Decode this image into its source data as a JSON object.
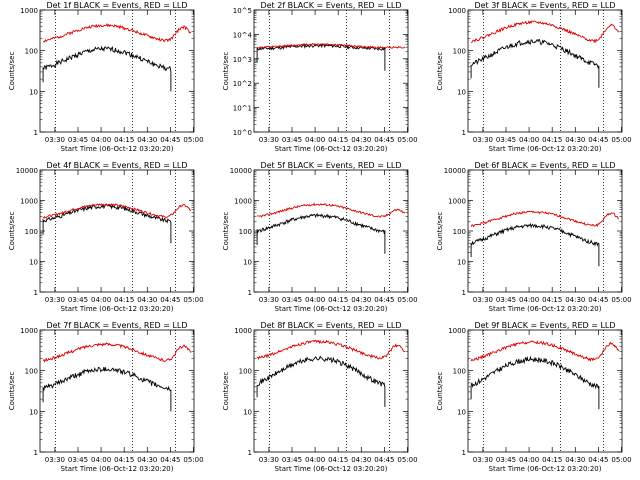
{
  "figure": {
    "xtick_labels": [
      "03:30",
      "03:45",
      "04:00",
      "04:15",
      "04:30",
      "04:45",
      "05:00"
    ],
    "xlabel": "Start Time (06-Oct-12 03:20:20)",
    "ylabel": "Counts/sec",
    "colors": {
      "events": "#000000",
      "lld": "#dd0000"
    }
  },
  "chart_data": [
    {
      "type": "line",
      "title": "Det 1f BLACK = Events, RED = LLD",
      "xlabel": "Start Time (06-Oct-12 03:20:20)",
      "ylabel": "Counts/sec",
      "x_unit": "minutes since 03:20:20",
      "xlim": [
        0,
        100
      ],
      "ylim": [
        1,
        1000
      ],
      "yscale": "log",
      "ytick_labels": [
        "1",
        "10",
        "100",
        "1000"
      ],
      "vlines": [
        10,
        60,
        88
      ],
      "series": [
        {
          "name": "Events",
          "color": "#000000",
          "start": 2,
          "end": 85,
          "base": 30,
          "peak": 110
        },
        {
          "name": "LLD",
          "color": "#dd0000",
          "start": 2,
          "end": 98,
          "base": 150,
          "peak": 420,
          "end_bump": 380
        }
      ]
    },
    {
      "type": "line",
      "title": "Det 2f BLACK = Events, RED = LLD",
      "xlabel": "Start Time (06-Oct-12 03:20:20)",
      "ylabel": "Counts/sec",
      "x_unit": "minutes since 03:20:20",
      "xlim": [
        0,
        100
      ],
      "ylim": [
        1,
        100000
      ],
      "yscale": "log",
      "ytick_labels": [
        "10^0",
        "10^1",
        "10^2",
        "10^3",
        "10^4",
        "10^5"
      ],
      "vlines": [
        10,
        60,
        88
      ],
      "series": [
        {
          "name": "Events",
          "color": "#000000",
          "start": 2,
          "end": 85,
          "base": 2500,
          "peak": 3500
        },
        {
          "name": "LLD",
          "color": "#dd0000",
          "start": 2,
          "end": 98,
          "base": 2800,
          "peak": 4000,
          "end_bump": 3000
        }
      ]
    },
    {
      "type": "line",
      "title": "Det 3f BLACK = Events, RED = LLD",
      "xlabel": "Start Time (06-Oct-12 03:20:20)",
      "ylabel": "Counts/sec",
      "x_unit": "minutes since 03:20:20",
      "xlim": [
        0,
        100
      ],
      "ylim": [
        1,
        1000
      ],
      "yscale": "log",
      "ytick_labels": [
        "1",
        "10",
        "100",
        "1000"
      ],
      "vlines": [
        10,
        60,
        88
      ],
      "series": [
        {
          "name": "Events",
          "color": "#000000",
          "start": 2,
          "end": 85,
          "base": 35,
          "peak": 170
        },
        {
          "name": "LLD",
          "color": "#dd0000",
          "start": 2,
          "end": 98,
          "base": 140,
          "peak": 500,
          "end_bump": 420
        }
      ]
    },
    {
      "type": "line",
      "title": "Det 4f BLACK = Events, RED = LLD",
      "xlabel": "Start Time (06-Oct-12 03:20:20)",
      "ylabel": "Counts/sec",
      "x_unit": "minutes since 03:20:20",
      "xlim": [
        0,
        100
      ],
      "ylim": [
        1,
        10000
      ],
      "yscale": "log",
      "ytick_labels": [
        "1",
        "10",
        "100",
        "1000",
        "10000"
      ],
      "vlines": [
        10,
        60,
        88
      ],
      "series": [
        {
          "name": "Events",
          "color": "#000000",
          "start": 2,
          "end": 85,
          "base": 180,
          "peak": 650
        },
        {
          "name": "LLD",
          "color": "#dd0000",
          "start": 2,
          "end": 98,
          "base": 240,
          "peak": 750,
          "end_bump": 700
        }
      ]
    },
    {
      "type": "line",
      "title": "Det 5f BLACK = Events, RED = LLD",
      "xlabel": "Start Time (06-Oct-12 03:20:20)",
      "ylabel": "Counts/sec",
      "x_unit": "minutes since 03:20:20",
      "xlim": [
        0,
        100
      ],
      "ylim": [
        1,
        10000
      ],
      "yscale": "log",
      "ytick_labels": [
        "1",
        "10",
        "100",
        "1000",
        "10000"
      ],
      "vlines": [
        10,
        60,
        88
      ],
      "series": [
        {
          "name": "Events",
          "color": "#000000",
          "start": 2,
          "end": 85,
          "base": 80,
          "peak": 320
        },
        {
          "name": "LLD",
          "color": "#dd0000",
          "start": 2,
          "end": 98,
          "base": 250,
          "peak": 750,
          "end_bump": 500
        }
      ]
    },
    {
      "type": "line",
      "title": "Det 6f BLACK = Events, RED = LLD",
      "xlabel": "Start Time (06-Oct-12 03:20:20)",
      "ylabel": "Counts/sec",
      "x_unit": "minutes since 03:20:20",
      "xlim": [
        0,
        100
      ],
      "ylim": [
        1,
        10000
      ],
      "yscale": "log",
      "ytick_labels": [
        "1",
        "10",
        "100",
        "1000",
        "10000"
      ],
      "vlines": [
        10,
        60,
        88
      ],
      "series": [
        {
          "name": "Events",
          "color": "#000000",
          "start": 2,
          "end": 85,
          "base": 30,
          "peak": 150
        },
        {
          "name": "LLD",
          "color": "#dd0000",
          "start": 2,
          "end": 98,
          "base": 120,
          "peak": 420,
          "end_bump": 380
        }
      ]
    },
    {
      "type": "line",
      "title": "Det 7f BLACK = Events, RED = LLD",
      "xlabel": "Start Time (06-Oct-12 03:20:20)",
      "ylabel": "Counts/sec",
      "x_unit": "minutes since 03:20:20",
      "xlim": [
        0,
        100
      ],
      "ylim": [
        1,
        1000
      ],
      "yscale": "log",
      "ytick_labels": [
        "1",
        "10",
        "100",
        "1000"
      ],
      "vlines": [
        10,
        60,
        88
      ],
      "series": [
        {
          "name": "Events",
          "color": "#000000",
          "start": 2,
          "end": 85,
          "base": 30,
          "peak": 110
        },
        {
          "name": "LLD",
          "color": "#dd0000",
          "start": 2,
          "end": 98,
          "base": 150,
          "peak": 450,
          "end_bump": 400
        }
      ]
    },
    {
      "type": "line",
      "title": "Det 8f BLACK = Events, RED = LLD",
      "xlabel": "Start Time (06-Oct-12 03:20:20)",
      "ylabel": "Counts/sec",
      "x_unit": "minutes since 03:20:20",
      "xlim": [
        0,
        100
      ],
      "ylim": [
        1,
        1000
      ],
      "yscale": "log",
      "ytick_labels": [
        "1",
        "10",
        "100",
        "1000"
      ],
      "vlines": [
        10,
        60,
        88
      ],
      "series": [
        {
          "name": "Events",
          "color": "#000000",
          "start": 2,
          "end": 85,
          "base": 35,
          "peak": 200
        },
        {
          "name": "LLD",
          "color": "#dd0000",
          "start": 2,
          "end": 98,
          "base": 170,
          "peak": 520,
          "end_bump": 420
        }
      ]
    },
    {
      "type": "line",
      "title": "Det 9f BLACK = Events, RED = LLD",
      "xlabel": "Start Time (06-Oct-12 03:20:20)",
      "ylabel": "Counts/sec",
      "x_unit": "minutes since 03:20:20",
      "xlim": [
        0,
        100
      ],
      "ylim": [
        1,
        1000
      ],
      "yscale": "log",
      "ytick_labels": [
        "1",
        "10",
        "100",
        "1000"
      ],
      "vlines": [
        10,
        60,
        88
      ],
      "series": [
        {
          "name": "Events",
          "color": "#000000",
          "start": 2,
          "end": 85,
          "base": 30,
          "peak": 190
        },
        {
          "name": "LLD",
          "color": "#dd0000",
          "start": 2,
          "end": 98,
          "base": 150,
          "peak": 500,
          "end_bump": 460
        }
      ]
    }
  ]
}
